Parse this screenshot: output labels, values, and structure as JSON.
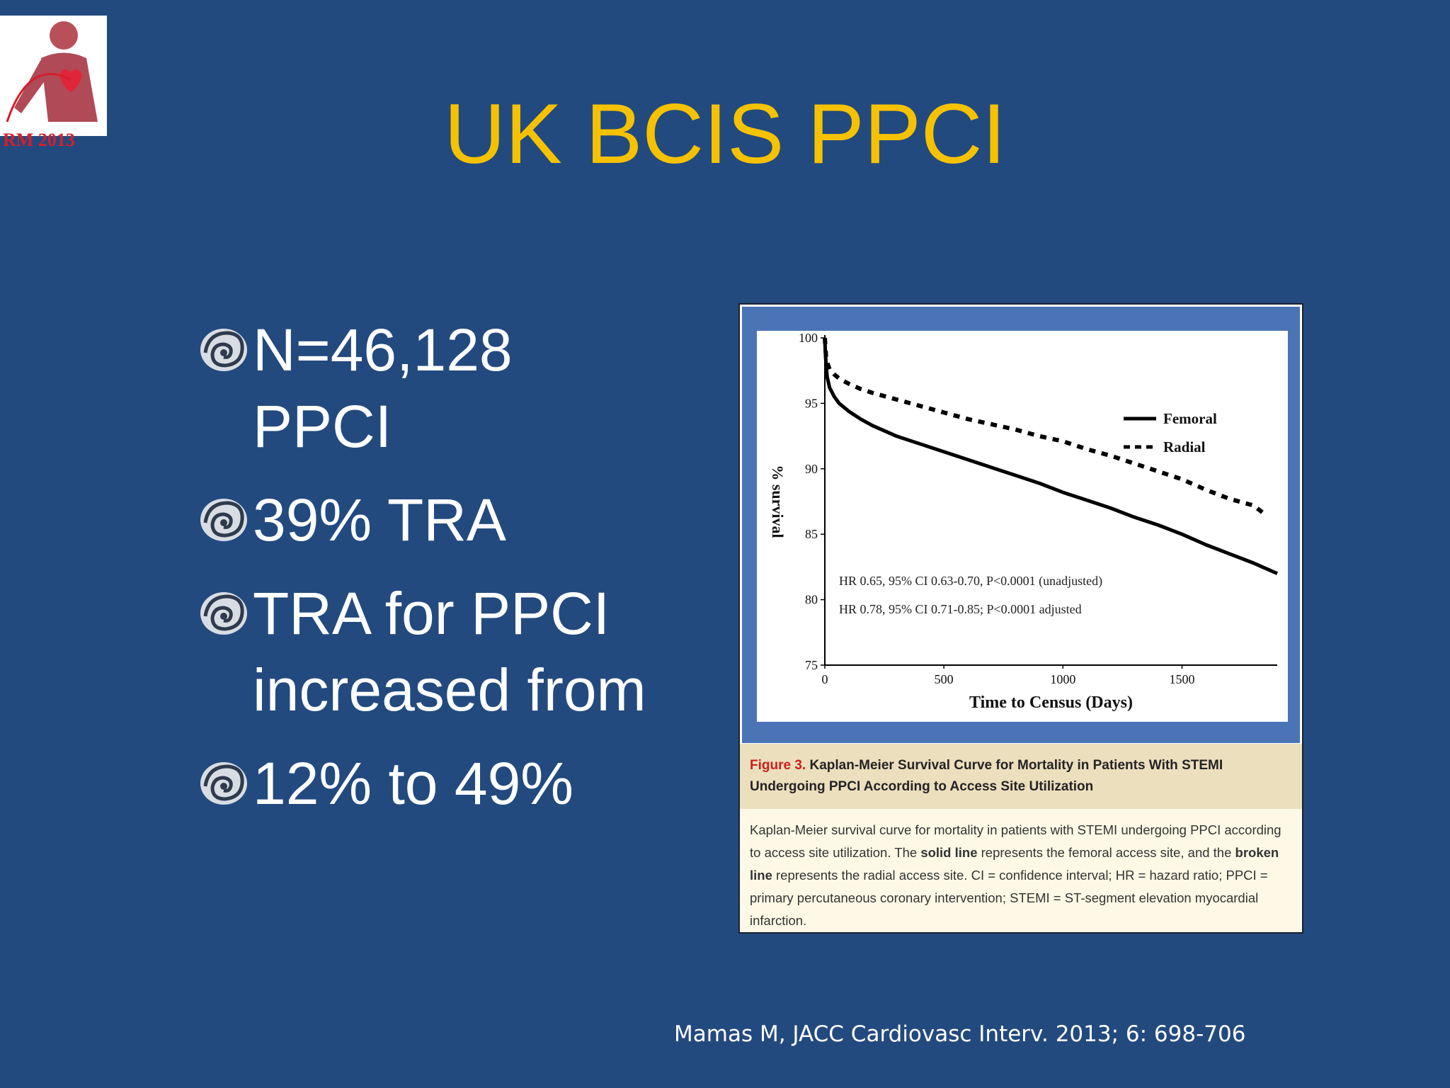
{
  "slide": {
    "title": "UK BCIS PPCI",
    "logo_text": "RM 2013",
    "bullets": [
      {
        "lines": [
          "N=46,128",
          "PPCI"
        ]
      },
      {
        "lines": [
          "39% TRA"
        ]
      },
      {
        "lines": [
          "TRA for PPCI",
          "increased from"
        ]
      },
      {
        "lines": [
          "12% to 49%"
        ]
      }
    ],
    "bullet_icon": "swirl-bullet-icon",
    "citation": "Mamas M, JACC Cardiovasc Interv. 2013; 6: 698-706"
  },
  "figure": {
    "caption_number": "Figure 3.",
    "caption_title": "Kaplan-Meier Survival Curve for Mortality in Patients With STEMI Undergoing PPCI According to Access Site Utilization",
    "caption_body_parts": [
      "Kaplan-Meier survival curve for mortality in patients with STEMI undergoing PPCI according to access site utilization. The ",
      "solid line",
      " represents the femoral access site, and the ",
      "broken line",
      " represents the radial access site. CI = confidence interval; HR = hazard ratio; PPCI = primary percutaneous coronary intervention; STEMI = ST-segment elevation myocardial infarction."
    ]
  },
  "chart_data": {
    "type": "line",
    "title": "",
    "xlabel": "Time to Census (Days)",
    "ylabel": "% survival",
    "xlim": [
      0,
      1900
    ],
    "ylim": [
      75,
      100
    ],
    "xticks": [
      "0",
      "500",
      "1000",
      "1500"
    ],
    "xtick_values": [
      0,
      500,
      1000,
      1500
    ],
    "yticks": [
      "75",
      "80",
      "85",
      "90",
      "95",
      "100"
    ],
    "ytick_values": [
      75,
      80,
      85,
      90,
      95,
      100
    ],
    "legend_position": "top-right",
    "annotations": [
      "HR 0.65, 95% CI 0.63-0.70, P<0.0001 (unadjusted)",
      "HR 0.78, 95% CI 0.71-0.85; P<0.0001 adjusted"
    ],
    "series": [
      {
        "name": "Femoral",
        "style": "solid",
        "color": "#000000",
        "x": [
          0,
          2,
          5,
          10,
          20,
          40,
          60,
          100,
          150,
          200,
          300,
          400,
          500,
          600,
          700,
          800,
          900,
          1000,
          1100,
          1200,
          1300,
          1400,
          1500,
          1600,
          1700,
          1800,
          1900
        ],
        "y": [
          100,
          99,
          98,
          97,
          96.2,
          95.5,
          95,
          94.4,
          93.8,
          93.3,
          92.5,
          91.9,
          91.3,
          90.7,
          90.1,
          89.5,
          88.9,
          88.2,
          87.6,
          87.0,
          86.3,
          85.7,
          85.0,
          84.2,
          83.5,
          82.8,
          82.0
        ]
      },
      {
        "name": "Radial",
        "style": "dashed",
        "color": "#000000",
        "x": [
          0,
          5,
          10,
          20,
          40,
          60,
          100,
          150,
          200,
          300,
          400,
          500,
          600,
          700,
          800,
          900,
          1000,
          1100,
          1200,
          1300,
          1400,
          1500,
          1600,
          1700,
          1800,
          1850
        ],
        "y": [
          100,
          98.6,
          98.1,
          97.6,
          97.2,
          96.9,
          96.5,
          96.1,
          95.8,
          95.3,
          94.8,
          94.3,
          93.8,
          93.4,
          93.0,
          92.5,
          92.1,
          91.5,
          91.0,
          90.4,
          89.8,
          89.2,
          88.4,
          87.7,
          87.2,
          86.5
        ]
      }
    ]
  }
}
